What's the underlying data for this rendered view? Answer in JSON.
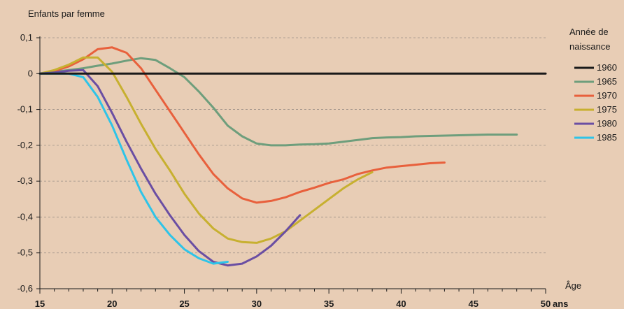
{
  "chart_data": {
    "type": "line",
    "title": "",
    "ylabel": "Enfants par femme",
    "xlabel": "Âge",
    "xunit": "ans",
    "xlim": [
      15,
      50
    ],
    "ylim": [
      -0.6,
      0.1
    ],
    "xticks": [
      15,
      20,
      25,
      30,
      35,
      40,
      45,
      50
    ],
    "yticks": [
      {
        "value": 0.1,
        "label": "0,1"
      },
      {
        "value": 0,
        "label": "0"
      },
      {
        "value": -0.1,
        "label": "-0,1"
      },
      {
        "value": -0.2,
        "label": "-0,2"
      },
      {
        "value": -0.3,
        "label": "-0,3"
      },
      {
        "value": -0.4,
        "label": "-0,4"
      },
      {
        "value": -0.5,
        "label": "-0,5"
      },
      {
        "value": -0.6,
        "label": "-0,6"
      }
    ],
    "grid": "horizontal dashed",
    "legend": {
      "title_line1": "Année de",
      "title_line2": "naissance",
      "position": "right"
    },
    "series": [
      {
        "name": "1960",
        "color": "#1a1a1a",
        "x": [
          15,
          50
        ],
        "y": [
          0,
          0
        ]
      },
      {
        "name": "1965",
        "color": "#6e9e7c",
        "x": [
          15,
          16,
          17,
          18,
          19,
          20,
          21,
          22,
          23,
          24,
          25,
          26,
          27,
          28,
          29,
          30,
          31,
          32,
          33,
          34,
          35,
          36,
          37,
          38,
          39,
          40,
          41,
          42,
          43,
          44,
          45,
          46,
          47,
          48
        ],
        "y": [
          0,
          0.005,
          0.01,
          0.015,
          0.022,
          0.028,
          0.036,
          0.043,
          0.038,
          0.015,
          -0.01,
          -0.05,
          -0.095,
          -0.145,
          -0.175,
          -0.195,
          -0.2,
          -0.2,
          -0.198,
          -0.197,
          -0.195,
          -0.19,
          -0.185,
          -0.18,
          -0.178,
          -0.177,
          -0.175,
          -0.174,
          -0.173,
          -0.172,
          -0.171,
          -0.17,
          -0.17,
          -0.17
        ]
      },
      {
        "name": "1970",
        "color": "#e8603c",
        "x": [
          15,
          16,
          17,
          18,
          19,
          20,
          21,
          22,
          23,
          24,
          25,
          26,
          27,
          28,
          29,
          30,
          31,
          32,
          33,
          34,
          35,
          36,
          37,
          38,
          39,
          40,
          41,
          42,
          43
        ],
        "y": [
          0,
          0.007,
          0.02,
          0.04,
          0.068,
          0.073,
          0.058,
          0.015,
          -0.045,
          -0.105,
          -0.165,
          -0.225,
          -0.28,
          -0.32,
          -0.348,
          -0.36,
          -0.355,
          -0.345,
          -0.33,
          -0.318,
          -0.305,
          -0.295,
          -0.28,
          -0.27,
          -0.262,
          -0.258,
          -0.254,
          -0.25,
          -0.248
        ]
      },
      {
        "name": "1975",
        "color": "#c7b030",
        "x": [
          15,
          16,
          17,
          18,
          19,
          20,
          21,
          22,
          23,
          24,
          25,
          26,
          27,
          28,
          29,
          30,
          31,
          32,
          33,
          34,
          35,
          36,
          37,
          38
        ],
        "y": [
          0,
          0.01,
          0.025,
          0.045,
          0.045,
          0.005,
          -0.065,
          -0.14,
          -0.21,
          -0.27,
          -0.335,
          -0.39,
          -0.432,
          -0.46,
          -0.47,
          -0.472,
          -0.46,
          -0.44,
          -0.41,
          -0.38,
          -0.35,
          -0.32,
          -0.295,
          -0.275
        ]
      },
      {
        "name": "1980",
        "color": "#6a4ea3",
        "x": [
          15,
          16,
          17,
          18,
          19,
          20,
          21,
          22,
          23,
          24,
          25,
          26,
          27,
          28,
          29,
          30,
          31,
          32,
          33
        ],
        "y": [
          0,
          0.003,
          0.008,
          0.01,
          -0.035,
          -0.11,
          -0.19,
          -0.265,
          -0.335,
          -0.395,
          -0.45,
          -0.495,
          -0.525,
          -0.535,
          -0.53,
          -0.51,
          -0.48,
          -0.44,
          -0.395
        ]
      },
      {
        "name": "1985",
        "color": "#2ec4e8",
        "x": [
          15,
          16,
          17,
          18,
          19,
          20,
          21,
          22,
          23,
          24,
          25,
          26,
          27,
          28
        ],
        "y": [
          0,
          0,
          0,
          -0.01,
          -0.065,
          -0.145,
          -0.24,
          -0.33,
          -0.4,
          -0.45,
          -0.49,
          -0.515,
          -0.53,
          -0.525
        ]
      }
    ]
  }
}
